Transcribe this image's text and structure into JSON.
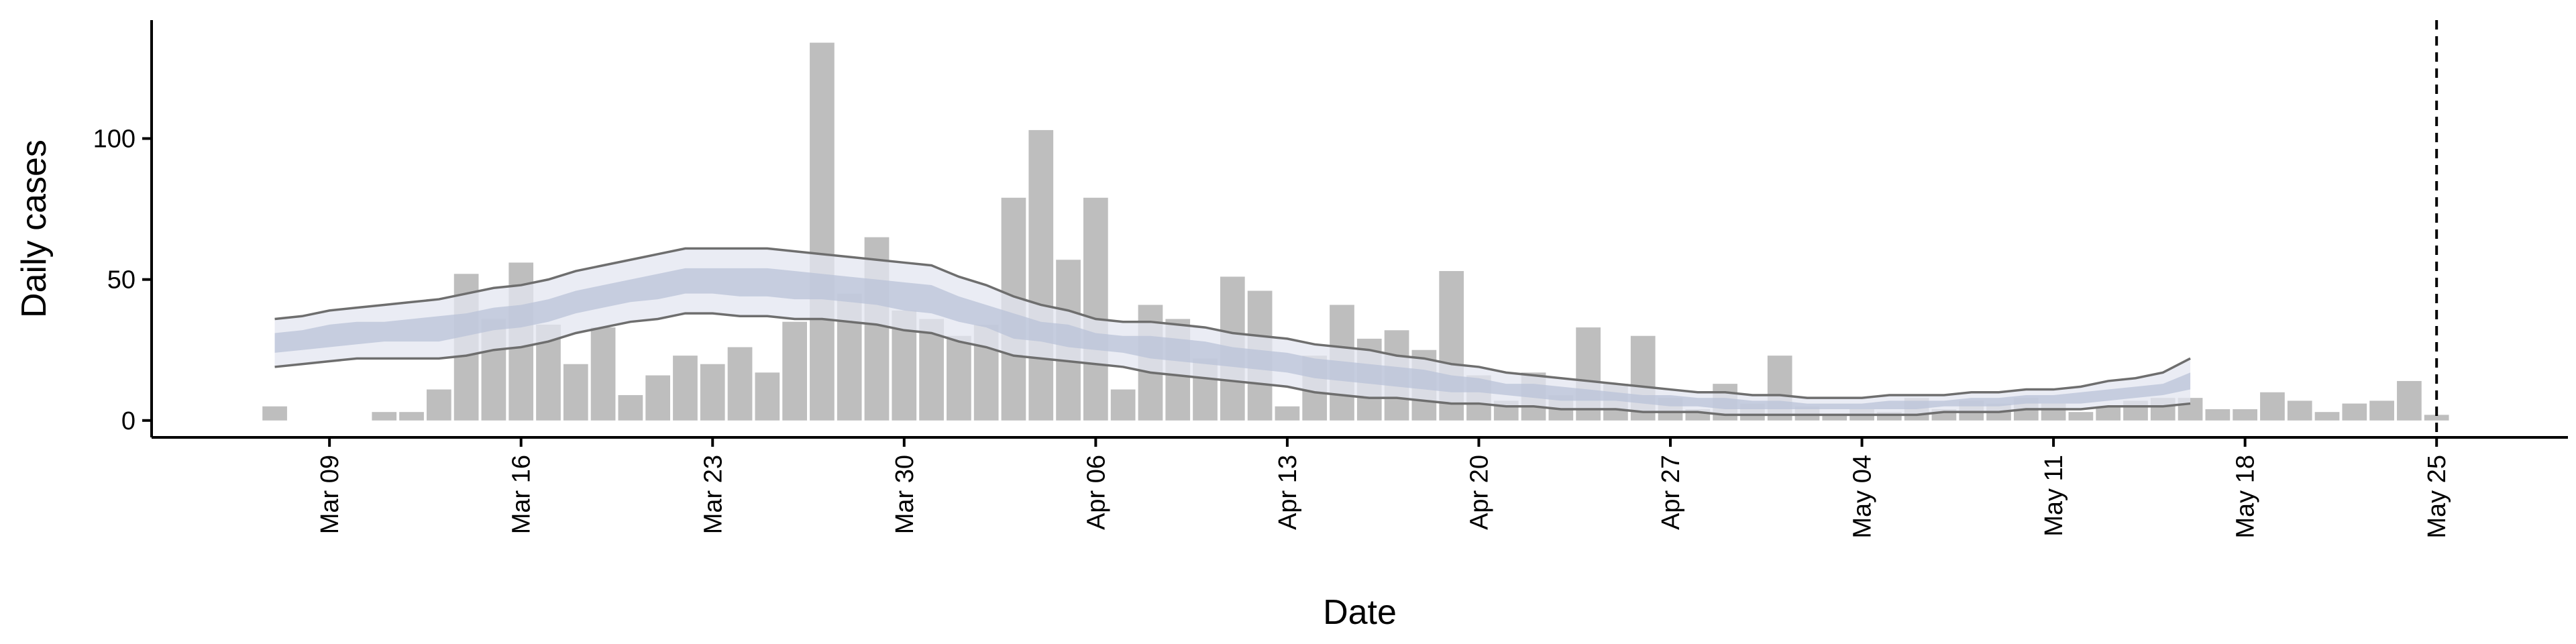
{
  "chart_data": {
    "type": "bar",
    "x_label": "Date",
    "y_label": "Daily cases",
    "color": "#bebebe",
    "categories": [
      null,
      null,
      "Mar 09",
      null,
      null,
      null,
      null,
      null,
      null,
      "Mar 16",
      null,
      null,
      null,
      null,
      null,
      null,
      "Mar 23",
      null,
      null,
      null,
      null,
      null,
      null,
      "Mar 30",
      null,
      null,
      null,
      null,
      null,
      null,
      "Apr 06",
      null,
      null,
      null,
      null,
      null,
      null,
      "Apr 13",
      null,
      null,
      null,
      null,
      null,
      null,
      "Apr 20",
      null,
      null,
      null,
      null,
      null,
      null,
      "Apr 27",
      null,
      null,
      null,
      null,
      null,
      null,
      "May 04",
      null,
      null,
      null,
      null,
      null,
      null,
      "May 11",
      null,
      null,
      null,
      null,
      null,
      null,
      "May 18",
      null,
      null,
      null,
      null,
      null,
      null,
      "May 25"
    ],
    "values": [
      5,
      0,
      0,
      0,
      3,
      3,
      11,
      52,
      36,
      56,
      34,
      20,
      33,
      9,
      16,
      23,
      20,
      26,
      17,
      35,
      134,
      45,
      65,
      39,
      36,
      30,
      34,
      79,
      103,
      57,
      79,
      11,
      41,
      36,
      22,
      51,
      46,
      5,
      23,
      41,
      29,
      32,
      25,
      53,
      16,
      7,
      17,
      9,
      33,
      13,
      30,
      8,
      4,
      13,
      6,
      23,
      5,
      2,
      4,
      3,
      8,
      4,
      7,
      6,
      8,
      6,
      3,
      5,
      7,
      8,
      8,
      4,
      4,
      10,
      7,
      3,
      6,
      7,
      14,
      2
    ],
    "ribbons": [
      {
        "color": "#e3e6f0",
        "line_color": "#6e6e6e",
        "upper": [
          36,
          37,
          39,
          40,
          41,
          42,
          43,
          45,
          47,
          48,
          50,
          53,
          55,
          57,
          59,
          61,
          61,
          61,
          61,
          60,
          59,
          58,
          57,
          56,
          55,
          51,
          48,
          44,
          41,
          39,
          36,
          35,
          35,
          34,
          33,
          31,
          30,
          29,
          27,
          26,
          25,
          23,
          22,
          20,
          19,
          17,
          16,
          15,
          14,
          13,
          12,
          11,
          10,
          10,
          9,
          9,
          8,
          8,
          8,
          9,
          9,
          9,
          10,
          10,
          11,
          11,
          12,
          14,
          15,
          17,
          22,
          null,
          null,
          null,
          null,
          null,
          null,
          null,
          null,
          null
        ],
        "lower": [
          19,
          20,
          21,
          22,
          22,
          22,
          22,
          23,
          25,
          26,
          28,
          31,
          33,
          35,
          36,
          38,
          38,
          37,
          37,
          36,
          36,
          35,
          34,
          32,
          31,
          28,
          26,
          23,
          22,
          21,
          20,
          19,
          17,
          16,
          15,
          14,
          13,
          12,
          10,
          9,
          8,
          8,
          7,
          6,
          6,
          5,
          5,
          4,
          4,
          4,
          3,
          3,
          3,
          2,
          2,
          2,
          2,
          2,
          2,
          2,
          2,
          3,
          3,
          3,
          4,
          4,
          4,
          5,
          5,
          5,
          6,
          null,
          null,
          null,
          null,
          null,
          null,
          null,
          null,
          null
        ]
      },
      {
        "color": "#b9c3d8",
        "upper": [
          31,
          32,
          34,
          35,
          35,
          36,
          37,
          38,
          40,
          41,
          43,
          46,
          48,
          50,
          52,
          54,
          54,
          54,
          54,
          53,
          52,
          51,
          50,
          49,
          48,
          44,
          41,
          38,
          35,
          34,
          31,
          30,
          30,
          29,
          28,
          26,
          25,
          24,
          22,
          21,
          20,
          19,
          18,
          16,
          15,
          13,
          13,
          12,
          11,
          10,
          9,
          9,
          8,
          8,
          7,
          7,
          6,
          6,
          6,
          7,
          7,
          7,
          8,
          8,
          9,
          9,
          10,
          11,
          12,
          13,
          17,
          null,
          null,
          null,
          null,
          null,
          null,
          null,
          null,
          null
        ],
        "lower": [
          24,
          25,
          26,
          27,
          28,
          28,
          28,
          30,
          32,
          33,
          35,
          38,
          40,
          42,
          43,
          45,
          45,
          44,
          44,
          43,
          43,
          42,
          41,
          39,
          38,
          35,
          33,
          29,
          28,
          26,
          25,
          24,
          22,
          21,
          20,
          19,
          18,
          17,
          15,
          14,
          13,
          12,
          11,
          10,
          10,
          9,
          8,
          7,
          7,
          7,
          6,
          5,
          5,
          4,
          4,
          4,
          4,
          4,
          4,
          4,
          4,
          5,
          5,
          5,
          6,
          6,
          6,
          7,
          8,
          9,
          11,
          null,
          null,
          null,
          null,
          null,
          null,
          null,
          null,
          null
        ]
      }
    ],
    "vline": "May 25",
    "ylim": [
      -6,
      142
    ],
    "yticks": [
      0,
      50,
      100
    ]
  }
}
